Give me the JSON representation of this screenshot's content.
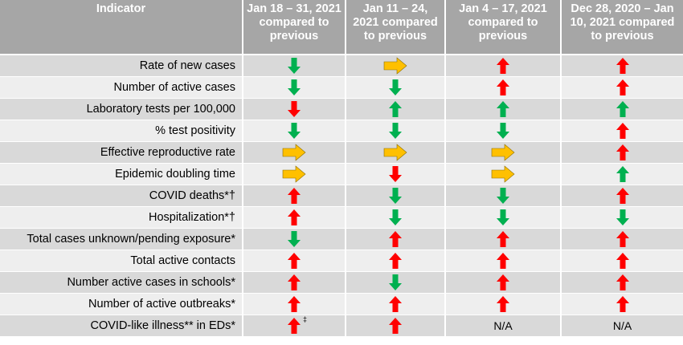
{
  "headers": [
    "Indicator",
    "Jan 18 – 31, 2021 compared to previous",
    "Jan 11 – 24, 2021 compared to previous",
    "Jan 4 – 17, 2021 compared to previous",
    "Dec 28, 2020 – Jan 10, 2021 compared to previous"
  ],
  "colors": {
    "up": "#ff0000",
    "down": "#00b050",
    "same": "#ffc000",
    "header_bg": "#a6a6a6"
  },
  "rows": [
    {
      "label": "Rate of new cases",
      "cells": [
        {
          "icon": "down-arrow-icon"
        },
        {
          "icon": "right-arrow-icon"
        },
        {
          "icon": "up-arrow-icon"
        },
        {
          "icon": "up-arrow-icon"
        }
      ]
    },
    {
      "label": "Number of active cases",
      "cells": [
        {
          "icon": "down-arrow-icon"
        },
        {
          "icon": "down-arrow-icon"
        },
        {
          "icon": "up-arrow-icon"
        },
        {
          "icon": "up-arrow-icon"
        }
      ]
    },
    {
      "label": "Laboratory tests per 100,000",
      "cells": [
        {
          "icon": "down-arrow-icon",
          "color": "#ff0000"
        },
        {
          "icon": "up-arrow-icon",
          "color": "#00b050"
        },
        {
          "icon": "up-arrow-icon",
          "color": "#00b050"
        },
        {
          "icon": "up-arrow-icon",
          "color": "#00b050"
        }
      ]
    },
    {
      "label": "% test positivity",
      "cells": [
        {
          "icon": "down-arrow-icon"
        },
        {
          "icon": "down-arrow-icon"
        },
        {
          "icon": "down-arrow-icon"
        },
        {
          "icon": "up-arrow-icon"
        }
      ]
    },
    {
      "label": "Effective reproductive rate",
      "cells": [
        {
          "icon": "right-arrow-icon"
        },
        {
          "icon": "right-arrow-icon"
        },
        {
          "icon": "right-arrow-icon"
        },
        {
          "icon": "up-arrow-icon"
        }
      ]
    },
    {
      "label": "Epidemic doubling time",
      "cells": [
        {
          "icon": "right-arrow-icon"
        },
        {
          "icon": "down-arrow-icon",
          "color": "#ff0000"
        },
        {
          "icon": "right-arrow-icon"
        },
        {
          "icon": "up-arrow-icon",
          "color": "#00b050"
        }
      ]
    },
    {
      "label": "COVID deaths*†",
      "cells": [
        {
          "icon": "up-arrow-icon"
        },
        {
          "icon": "down-arrow-icon"
        },
        {
          "icon": "down-arrow-icon"
        },
        {
          "icon": "up-arrow-icon"
        }
      ]
    },
    {
      "label": "Hospitalization*†",
      "cells": [
        {
          "icon": "up-arrow-icon"
        },
        {
          "icon": "down-arrow-icon"
        },
        {
          "icon": "down-arrow-icon"
        },
        {
          "icon": "down-arrow-icon"
        }
      ]
    },
    {
      "label": "Total cases unknown/pending exposure*",
      "cells": [
        {
          "icon": "down-arrow-icon"
        },
        {
          "icon": "up-arrow-icon"
        },
        {
          "icon": "up-arrow-icon"
        },
        {
          "icon": "up-arrow-icon"
        }
      ]
    },
    {
      "label": "Total active contacts",
      "cells": [
        {
          "icon": "up-arrow-icon"
        },
        {
          "icon": "up-arrow-icon"
        },
        {
          "icon": "up-arrow-icon"
        },
        {
          "icon": "up-arrow-icon"
        }
      ]
    },
    {
      "label": "Number active cases in schools*",
      "cells": [
        {
          "icon": "up-arrow-icon"
        },
        {
          "icon": "down-arrow-icon"
        },
        {
          "icon": "up-arrow-icon"
        },
        {
          "icon": "up-arrow-icon"
        }
      ]
    },
    {
      "label": "Number of active outbreaks*",
      "cells": [
        {
          "icon": "up-arrow-icon"
        },
        {
          "icon": "up-arrow-icon"
        },
        {
          "icon": "up-arrow-icon"
        },
        {
          "icon": "up-arrow-icon"
        }
      ]
    },
    {
      "label": "COVID-like illness** in EDs*",
      "cells": [
        {
          "icon": "up-arrow-icon",
          "sup": "‡"
        },
        {
          "icon": "up-arrow-icon"
        },
        {
          "text": "N/A"
        },
        {
          "text": "N/A"
        }
      ]
    }
  ]
}
